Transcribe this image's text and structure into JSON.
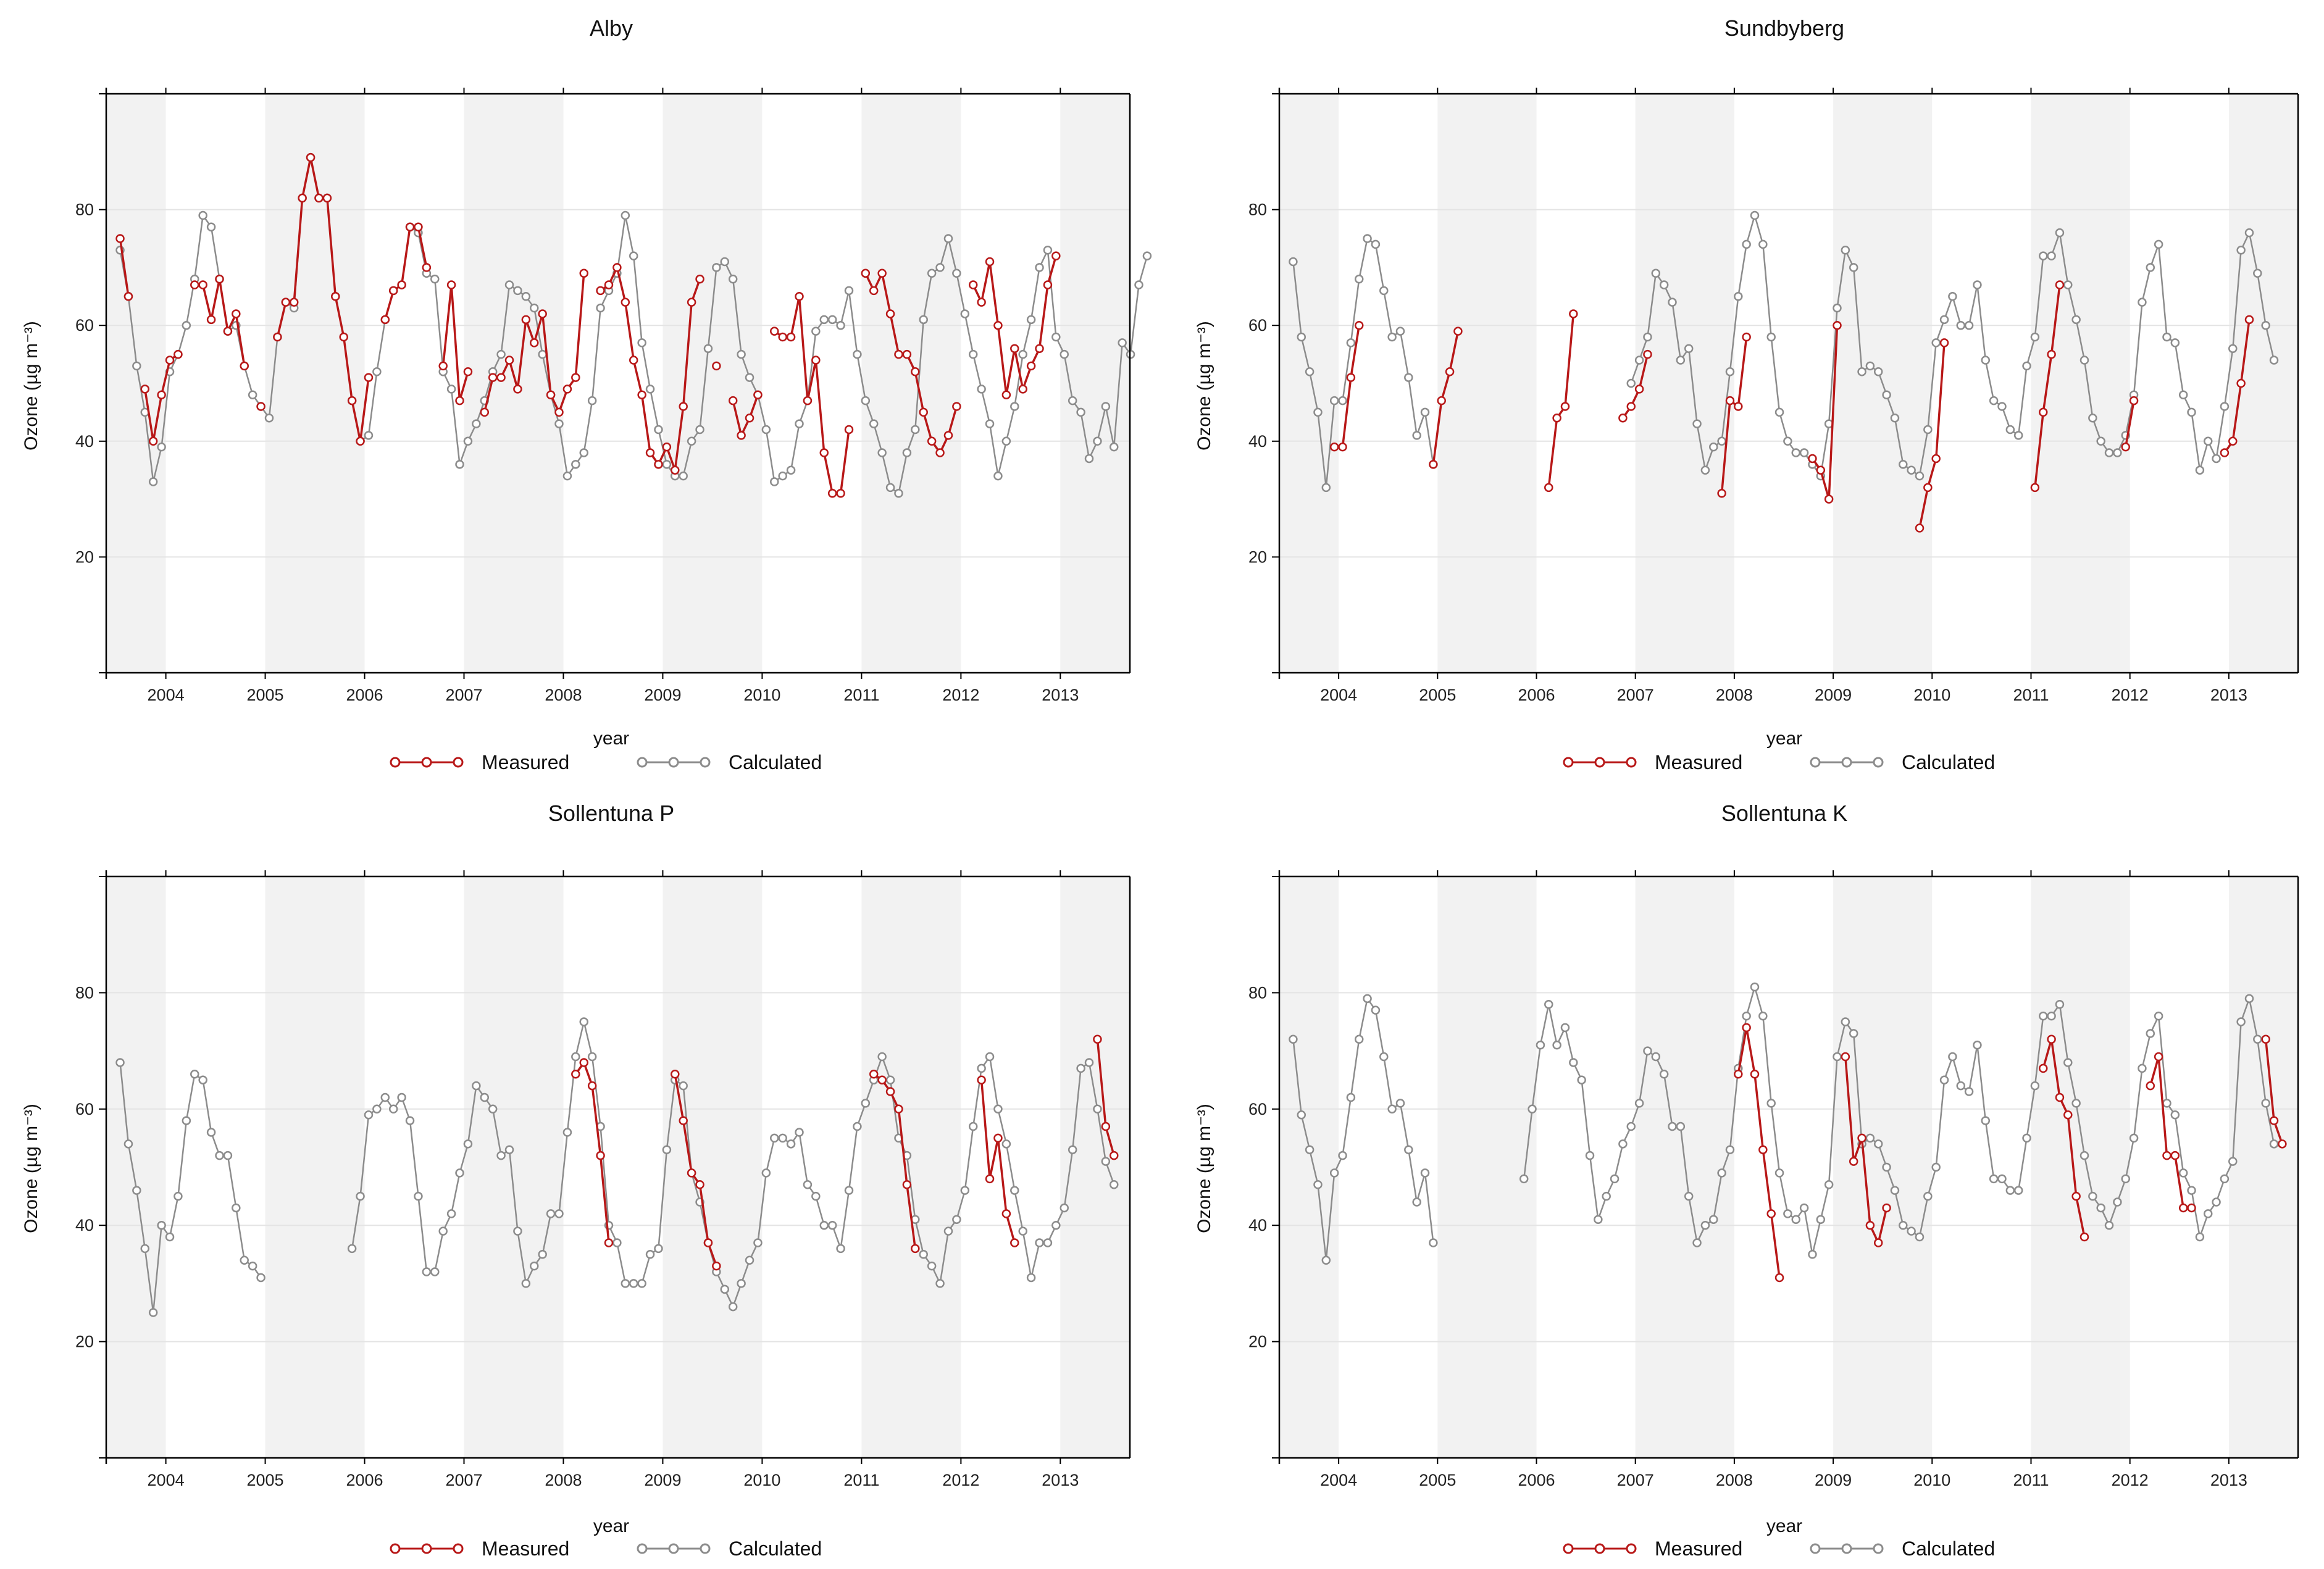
{
  "figure": {
    "legend": {
      "measured": "Measured",
      "calculated": "Calculated"
    },
    "colors": {
      "measured": "#b81818",
      "calculated": "#8c8c8c",
      "band": "#f2f2f2",
      "grid": "#e4e4e4",
      "frame": "#000000"
    }
  },
  "chart_data": [
    {
      "type": "line",
      "title": "Alby",
      "xlabel": "year",
      "ylabel": "Ozone (µg m⁻³)",
      "ylim": [
        0,
        100
      ],
      "yticks": [
        20,
        40,
        60,
        80
      ],
      "xlim": [
        2003.4,
        2013.7
      ],
      "xticks": [
        2004,
        2005,
        2006,
        2007,
        2008,
        2009,
        2010,
        2011,
        2012,
        2013
      ],
      "series": [
        {
          "name": "Calculated",
          "t0": 2003.54,
          "values": [
            73,
            65,
            53,
            45,
            33,
            39,
            52,
            55,
            60,
            68,
            79,
            77,
            68,
            59,
            60,
            53,
            48,
            46,
            44,
            58,
            64,
            63,
            82,
            89,
            82,
            82,
            65,
            58,
            47,
            40,
            41,
            52,
            61,
            66,
            67,
            77,
            76,
            69,
            68,
            52,
            49,
            36,
            40,
            43,
            47,
            52,
            55,
            67,
            66,
            65,
            63,
            55,
            48,
            43,
            34,
            36,
            38,
            47,
            63,
            66,
            69,
            79,
            72,
            57,
            49,
            42,
            36,
            34,
            34,
            40,
            42,
            56,
            70,
            71,
            68,
            55,
            51,
            48,
            42,
            33,
            34,
            35,
            43,
            47,
            59,
            61,
            61,
            60,
            66,
            55,
            47,
            43,
            38,
            32,
            31,
            38,
            42,
            61,
            69,
            70,
            75,
            69,
            62,
            55,
            49,
            43,
            34,
            40,
            46,
            55,
            61,
            70,
            73,
            58,
            55,
            47,
            45,
            37,
            40,
            46,
            39,
            57,
            55,
            67,
            72
          ]
        },
        {
          "name": "Measured",
          "t0": 2003.54,
          "values": [
            75,
            65,
            null,
            49,
            40,
            48,
            54,
            55,
            null,
            67,
            67,
            61,
            68,
            59,
            62,
            53,
            null,
            46,
            null,
            58,
            64,
            64,
            82,
            89,
            82,
            82,
            65,
            58,
            47,
            40,
            51,
            null,
            61,
            66,
            67,
            77,
            77,
            70,
            null,
            53,
            67,
            47,
            52,
            null,
            45,
            51,
            51,
            54,
            49,
            61,
            57,
            62,
            48,
            45,
            49,
            51,
            69,
            null,
            66,
            67,
            70,
            64,
            54,
            48,
            38,
            36,
            39,
            35,
            46,
            64,
            68,
            null,
            53,
            null,
            47,
            41,
            44,
            48,
            null,
            59,
            58,
            58,
            65,
            47,
            54,
            38,
            31,
            31,
            42,
            null,
            69,
            66,
            69,
            62,
            55,
            55,
            52,
            45,
            40,
            38,
            41,
            46,
            null,
            67,
            64,
            71,
            60,
            48,
            56,
            49,
            53,
            56,
            67,
            72
          ]
        }
      ]
    },
    {
      "type": "line",
      "title": "Sundbyberg",
      "xlabel": "year",
      "ylabel": "Ozone (µg m⁻³)",
      "ylim": [
        0,
        100
      ],
      "yticks": [
        20,
        40,
        60,
        80
      ],
      "xlim": [
        2003.4,
        2013.7
      ],
      "xticks": [
        2004,
        2005,
        2006,
        2007,
        2008,
        2009,
        2010,
        2011,
        2012,
        2013
      ],
      "series": [
        {
          "name": "Calculated",
          "t0": 2003.54,
          "values": [
            71,
            58,
            52,
            45,
            32,
            47,
            47,
            57,
            68,
            75,
            74,
            66,
            58,
            59,
            51,
            41,
            45,
            36,
            null,
            null,
            null,
            null,
            null,
            null,
            null,
            null,
            null,
            null,
            null,
            null,
            null,
            null,
            null,
            null,
            null,
            null,
            null,
            null,
            null,
            null,
            null,
            50,
            54,
            58,
            69,
            67,
            64,
            54,
            56,
            43,
            35,
            39,
            40,
            52,
            65,
            74,
            79,
            74,
            58,
            45,
            40,
            38,
            38,
            36,
            34,
            43,
            63,
            73,
            70,
            52,
            53,
            52,
            48,
            44,
            36,
            35,
            34,
            42,
            57,
            61,
            65,
            60,
            60,
            67,
            54,
            47,
            46,
            42,
            41,
            53,
            58,
            72,
            72,
            76,
            67,
            61,
            54,
            44,
            40,
            38,
            38,
            41,
            48,
            64,
            70,
            74,
            58,
            57,
            48,
            45,
            35,
            40,
            37,
            46,
            56,
            73,
            76,
            69,
            60,
            54
          ]
        },
        {
          "name": "Measured",
          "t0": 2003.54,
          "values": [
            null,
            null,
            null,
            null,
            null,
            39,
            39,
            51,
            60,
            null,
            null,
            null,
            null,
            null,
            null,
            null,
            null,
            36,
            47,
            52,
            59,
            null,
            null,
            null,
            null,
            null,
            null,
            null,
            null,
            null,
            null,
            32,
            44,
            46,
            62,
            null,
            null,
            null,
            null,
            null,
            44,
            46,
            49,
            55,
            null,
            null,
            null,
            null,
            null,
            null,
            null,
            null,
            31,
            47,
            46,
            58,
            null,
            null,
            null,
            null,
            null,
            null,
            null,
            37,
            35,
            30,
            60,
            null,
            null,
            null,
            null,
            null,
            null,
            null,
            null,
            null,
            25,
            32,
            37,
            57,
            null,
            null,
            null,
            null,
            null,
            null,
            null,
            null,
            null,
            null,
            32,
            45,
            55,
            67,
            null,
            null,
            null,
            null,
            null,
            null,
            null,
            39,
            47,
            null,
            null,
            null,
            null,
            null,
            null,
            null,
            null,
            null,
            null,
            38,
            40,
            50,
            61
          ]
        }
      ]
    },
    {
      "type": "line",
      "title": "Sollentuna P",
      "xlabel": "year",
      "ylabel": "Ozone (µg m⁻³)",
      "ylim": [
        0,
        100
      ],
      "yticks": [
        20,
        40,
        60,
        80
      ],
      "xlim": [
        2003.4,
        2013.7
      ],
      "xticks": [
        2004,
        2005,
        2006,
        2007,
        2008,
        2009,
        2010,
        2011,
        2012,
        2013
      ],
      "series": [
        {
          "name": "Calculated",
          "t0": 2003.54,
          "values": [
            68,
            54,
            46,
            36,
            25,
            40,
            38,
            45,
            58,
            66,
            65,
            56,
            52,
            52,
            43,
            34,
            33,
            31,
            null,
            null,
            null,
            null,
            null,
            null,
            null,
            null,
            null,
            null,
            36,
            45,
            59,
            60,
            62,
            60,
            62,
            58,
            45,
            32,
            32,
            39,
            42,
            49,
            54,
            64,
            62,
            60,
            52,
            53,
            39,
            30,
            33,
            35,
            42,
            42,
            56,
            69,
            75,
            69,
            57,
            40,
            37,
            30,
            30,
            30,
            35,
            36,
            53,
            65,
            64,
            49,
            44,
            37,
            32,
            29,
            26,
            30,
            34,
            37,
            49,
            55,
            55,
            54,
            56,
            47,
            45,
            40,
            40,
            36,
            46,
            57,
            61,
            65,
            69,
            65,
            55,
            52,
            41,
            35,
            33,
            30,
            39,
            41,
            46,
            57,
            67,
            69,
            60,
            54,
            46,
            39,
            31,
            37,
            37,
            40,
            43,
            53,
            67,
            68,
            60,
            51,
            47
          ]
        },
        {
          "name": "Measured",
          "t0": 2003.54,
          "values": [
            null,
            null,
            null,
            null,
            null,
            null,
            null,
            null,
            null,
            null,
            null,
            null,
            null,
            null,
            null,
            null,
            null,
            null,
            null,
            null,
            null,
            null,
            null,
            null,
            null,
            null,
            null,
            null,
            null,
            null,
            null,
            null,
            null,
            null,
            null,
            null,
            null,
            null,
            null,
            null,
            null,
            null,
            null,
            null,
            null,
            null,
            null,
            null,
            null,
            null,
            null,
            null,
            null,
            null,
            null,
            66,
            68,
            64,
            52,
            37,
            null,
            null,
            null,
            null,
            null,
            null,
            null,
            66,
            58,
            49,
            47,
            37,
            33,
            null,
            null,
            null,
            null,
            null,
            null,
            null,
            null,
            null,
            null,
            null,
            null,
            null,
            null,
            null,
            null,
            null,
            null,
            66,
            65,
            63,
            60,
            47,
            36,
            null,
            null,
            null,
            null,
            null,
            null,
            null,
            65,
            48,
            55,
            42,
            37,
            null,
            null,
            null,
            null,
            null,
            null,
            null,
            null,
            null,
            72,
            57,
            52
          ]
        }
      ]
    },
    {
      "type": "line",
      "title": "Sollentuna K",
      "xlabel": "year",
      "ylabel": "Ozone (µg m⁻³)",
      "ylim": [
        0,
        100
      ],
      "yticks": [
        20,
        40,
        60,
        80
      ],
      "xlim": [
        2003.4,
        2013.7
      ],
      "xticks": [
        2004,
        2005,
        2006,
        2007,
        2008,
        2009,
        2010,
        2011,
        2012,
        2013
      ],
      "series": [
        {
          "name": "Calculated",
          "t0": 2003.54,
          "values": [
            72,
            59,
            53,
            47,
            34,
            49,
            52,
            62,
            72,
            79,
            77,
            69,
            60,
            61,
            53,
            44,
            49,
            37,
            null,
            null,
            null,
            null,
            null,
            null,
            null,
            null,
            null,
            null,
            48,
            60,
            71,
            78,
            71,
            74,
            68,
            65,
            52,
            41,
            45,
            48,
            54,
            57,
            61,
            70,
            69,
            66,
            57,
            57,
            45,
            37,
            40,
            41,
            49,
            53,
            67,
            76,
            81,
            76,
            61,
            49,
            42,
            41,
            43,
            35,
            41,
            47,
            69,
            75,
            73,
            54,
            55,
            54,
            50,
            46,
            40,
            39,
            38,
            45,
            50,
            65,
            69,
            64,
            63,
            71,
            58,
            48,
            48,
            46,
            46,
            55,
            64,
            76,
            76,
            78,
            68,
            61,
            52,
            45,
            43,
            40,
            44,
            48,
            55,
            67,
            73,
            76,
            61,
            59,
            49,
            46,
            38,
            42,
            44,
            48,
            51,
            75,
            79,
            72,
            61,
            54
          ]
        },
        {
          "name": "Measured",
          "t0": 2003.54,
          "values": [
            null,
            null,
            null,
            null,
            null,
            null,
            null,
            null,
            null,
            null,
            null,
            null,
            null,
            null,
            null,
            null,
            null,
            null,
            null,
            null,
            null,
            null,
            null,
            null,
            null,
            null,
            null,
            null,
            null,
            null,
            null,
            null,
            null,
            null,
            null,
            null,
            null,
            null,
            null,
            null,
            null,
            null,
            null,
            null,
            null,
            null,
            null,
            null,
            null,
            null,
            null,
            null,
            null,
            null,
            66,
            74,
            66,
            53,
            42,
            31,
            null,
            null,
            null,
            null,
            null,
            null,
            null,
            69,
            51,
            55,
            40,
            37,
            43,
            null,
            null,
            null,
            null,
            null,
            null,
            null,
            null,
            null,
            null,
            null,
            null,
            null,
            null,
            null,
            null,
            null,
            null,
            67,
            72,
            62,
            59,
            45,
            38,
            null,
            null,
            null,
            null,
            null,
            null,
            null,
            64,
            69,
            52,
            52,
            43,
            43,
            null,
            null,
            null,
            null,
            null,
            null,
            null,
            null,
            72,
            58,
            54
          ]
        }
      ]
    }
  ]
}
